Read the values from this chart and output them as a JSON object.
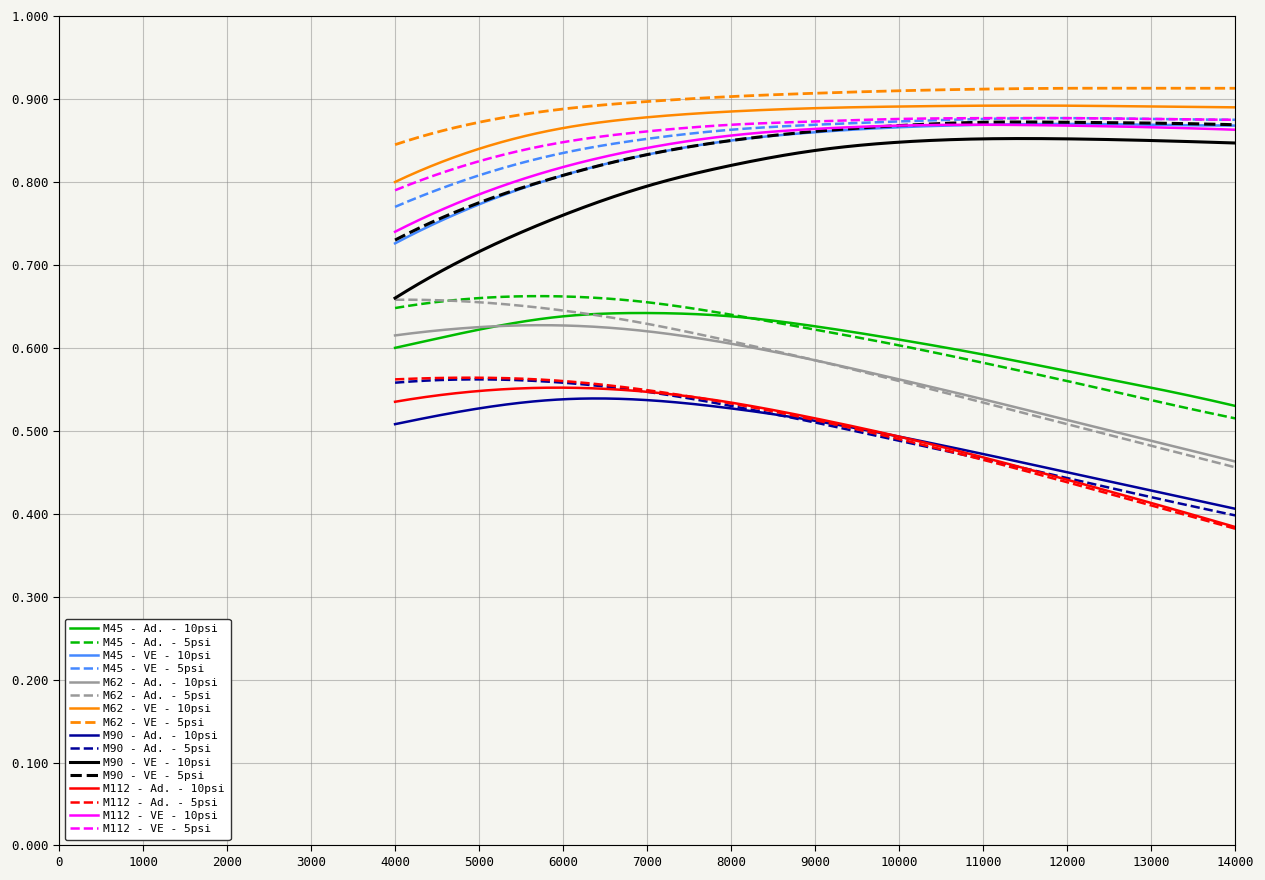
{
  "xlim": [
    0,
    14000
  ],
  "ylim": [
    0.0,
    1.0
  ],
  "xticks": [
    0,
    1000,
    2000,
    3000,
    4000,
    5000,
    6000,
    7000,
    8000,
    9000,
    10000,
    11000,
    12000,
    13000,
    14000
  ],
  "yticks": [
    0.0,
    0.1,
    0.2,
    0.3,
    0.4,
    0.5,
    0.6,
    0.7,
    0.8,
    0.9,
    1.0
  ],
  "series": [
    {
      "label": "M45 - Ad. - 10psi",
      "color": "#00bb00",
      "style": "solid",
      "lw": 1.8,
      "x": [
        4000,
        5000,
        6000,
        7000,
        8000,
        9000,
        10000,
        11000,
        12000,
        13000,
        14000
      ],
      "y": [
        0.6,
        0.622,
        0.638,
        0.642,
        0.638,
        0.626,
        0.61,
        0.592,
        0.572,
        0.552,
        0.53
      ]
    },
    {
      "label": "M45 - Ad. - 5psi",
      "color": "#00bb00",
      "style": "dashed",
      "lw": 1.8,
      "x": [
        4000,
        5000,
        6000,
        7000,
        8000,
        9000,
        10000,
        11000,
        12000,
        13000,
        14000
      ],
      "y": [
        0.648,
        0.66,
        0.662,
        0.655,
        0.64,
        0.622,
        0.603,
        0.582,
        0.56,
        0.537,
        0.515
      ]
    },
    {
      "label": "M45 - VE - 10psi",
      "color": "#4488ff",
      "style": "solid",
      "lw": 1.8,
      "x": [
        4000,
        5000,
        6000,
        7000,
        8000,
        9000,
        10000,
        11000,
        12000,
        13000,
        14000
      ],
      "y": [
        0.726,
        0.773,
        0.808,
        0.833,
        0.85,
        0.86,
        0.866,
        0.869,
        0.87,
        0.869,
        0.868
      ]
    },
    {
      "label": "M45 - VE - 5psi",
      "color": "#4488ff",
      "style": "dashed",
      "lw": 1.8,
      "x": [
        4000,
        5000,
        6000,
        7000,
        8000,
        9000,
        10000,
        11000,
        12000,
        13000,
        14000
      ],
      "y": [
        0.77,
        0.808,
        0.835,
        0.852,
        0.863,
        0.869,
        0.873,
        0.876,
        0.877,
        0.876,
        0.875
      ]
    },
    {
      "label": "M62 - Ad. - 10psi",
      "color": "#999999",
      "style": "solid",
      "lw": 1.8,
      "x": [
        4000,
        5000,
        6000,
        7000,
        8000,
        9000,
        10000,
        11000,
        12000,
        13000,
        14000
      ],
      "y": [
        0.615,
        0.625,
        0.627,
        0.62,
        0.605,
        0.585,
        0.562,
        0.538,
        0.513,
        0.488,
        0.463
      ]
    },
    {
      "label": "M62 - Ad. - 5psi",
      "color": "#999999",
      "style": "dashed",
      "lw": 1.8,
      "x": [
        4000,
        5000,
        6000,
        7000,
        8000,
        9000,
        10000,
        11000,
        12000,
        13000,
        14000
      ],
      "y": [
        0.658,
        0.655,
        0.645,
        0.629,
        0.608,
        0.585,
        0.56,
        0.534,
        0.508,
        0.482,
        0.456
      ]
    },
    {
      "label": "M62 - VE - 10psi",
      "color": "#ff8800",
      "style": "solid",
      "lw": 1.8,
      "x": [
        4000,
        5000,
        6000,
        7000,
        8000,
        9000,
        10000,
        11000,
        12000,
        13000,
        14000
      ],
      "y": [
        0.8,
        0.84,
        0.865,
        0.878,
        0.885,
        0.889,
        0.891,
        0.892,
        0.892,
        0.891,
        0.89
      ]
    },
    {
      "label": "M62 - VE - 5psi",
      "color": "#ff8800",
      "style": "dashed",
      "lw": 2.0,
      "x": [
        4000,
        5000,
        6000,
        7000,
        8000,
        9000,
        10000,
        11000,
        12000,
        13000,
        14000
      ],
      "y": [
        0.845,
        0.872,
        0.888,
        0.897,
        0.903,
        0.907,
        0.91,
        0.912,
        0.913,
        0.913,
        0.913
      ]
    },
    {
      "label": "M90 - Ad. - 10psi",
      "color": "#000099",
      "style": "solid",
      "lw": 1.8,
      "x": [
        4000,
        5000,
        6000,
        7000,
        8000,
        9000,
        10000,
        11000,
        12000,
        13000,
        14000
      ],
      "y": [
        0.508,
        0.527,
        0.538,
        0.537,
        0.527,
        0.512,
        0.493,
        0.472,
        0.45,
        0.428,
        0.406
      ]
    },
    {
      "label": "M90 - Ad. - 5psi",
      "color": "#000099",
      "style": "dashed",
      "lw": 1.8,
      "x": [
        4000,
        5000,
        6000,
        7000,
        8000,
        9000,
        10000,
        11000,
        12000,
        13000,
        14000
      ],
      "y": [
        0.558,
        0.562,
        0.558,
        0.547,
        0.53,
        0.51,
        0.488,
        0.466,
        0.443,
        0.42,
        0.398
      ]
    },
    {
      "label": "M90 - VE - 10psi",
      "color": "#000000",
      "style": "solid",
      "lw": 2.2,
      "x": [
        4000,
        5000,
        6000,
        7000,
        8000,
        9000,
        10000,
        11000,
        12000,
        13000,
        14000
      ],
      "y": [
        0.66,
        0.716,
        0.76,
        0.795,
        0.82,
        0.838,
        0.848,
        0.852,
        0.852,
        0.85,
        0.847
      ]
    },
    {
      "label": "M90 - VE - 5psi",
      "color": "#000000",
      "style": "dashed",
      "lw": 2.2,
      "x": [
        4000,
        5000,
        6000,
        7000,
        8000,
        9000,
        10000,
        11000,
        12000,
        13000,
        14000
      ],
      "y": [
        0.73,
        0.775,
        0.808,
        0.833,
        0.85,
        0.861,
        0.868,
        0.872,
        0.872,
        0.871,
        0.869
      ]
    },
    {
      "label": "M112 - Ad. - 10psi",
      "color": "#ff0000",
      "style": "solid",
      "lw": 1.8,
      "x": [
        4000,
        5000,
        6000,
        7000,
        8000,
        9000,
        10000,
        11000,
        12000,
        13000,
        14000
      ],
      "y": [
        0.535,
        0.548,
        0.552,
        0.547,
        0.534,
        0.515,
        0.493,
        0.468,
        0.441,
        0.413,
        0.384
      ]
    },
    {
      "label": "M112 - Ad. - 5psi",
      "color": "#ff0000",
      "style": "dashed",
      "lw": 1.8,
      "x": [
        4000,
        5000,
        6000,
        7000,
        8000,
        9000,
        10000,
        11000,
        12000,
        13000,
        14000
      ],
      "y": [
        0.562,
        0.564,
        0.56,
        0.549,
        0.533,
        0.513,
        0.49,
        0.465,
        0.438,
        0.41,
        0.382
      ]
    },
    {
      "label": "M112 - VE - 10psi",
      "color": "#ff00ff",
      "style": "solid",
      "lw": 1.8,
      "x": [
        4000,
        5000,
        6000,
        7000,
        8000,
        9000,
        10000,
        11000,
        12000,
        13000,
        14000
      ],
      "y": [
        0.74,
        0.785,
        0.818,
        0.841,
        0.856,
        0.864,
        0.868,
        0.869,
        0.868,
        0.866,
        0.863
      ]
    },
    {
      "label": "M112 - VE - 5psi",
      "color": "#ff00ff",
      "style": "dashed",
      "lw": 1.8,
      "x": [
        4000,
        5000,
        6000,
        7000,
        8000,
        9000,
        10000,
        11000,
        12000,
        13000,
        14000
      ],
      "y": [
        0.79,
        0.825,
        0.848,
        0.861,
        0.869,
        0.873,
        0.876,
        0.877,
        0.877,
        0.876,
        0.875
      ]
    }
  ],
  "background_color": "#f5f5f0",
  "grid_color": "#888888",
  "font_family": "monospace"
}
